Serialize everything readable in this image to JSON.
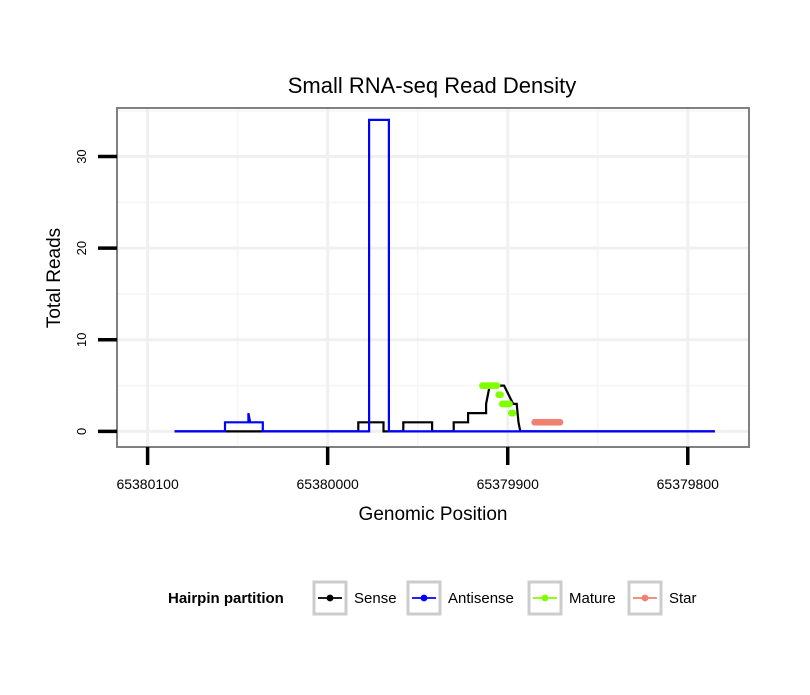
{
  "chart_data": {
    "type": "line",
    "title": "Small RNA-seq Read Density",
    "xlabel": "Genomic Position",
    "ylabel": "Total Reads",
    "xlim": [
      65380117,
      65379766
    ],
    "ylim": [
      -1.7,
      35.3
    ],
    "x_reversed": true,
    "x_ticks": [
      65380100,
      65380000,
      65379900,
      65379800
    ],
    "x_tick_labels": [
      "65380100",
      "65380000",
      "65379900",
      "65379800"
    ],
    "y_ticks": [
      0,
      10,
      20,
      30
    ],
    "y_tick_labels": [
      "0",
      "10",
      "20",
      "30"
    ],
    "grid": true,
    "legend": {
      "title": "Hairpin partition",
      "position": "bottom",
      "entries": [
        "Sense",
        "Antisense",
        "Mature",
        "Star"
      ]
    },
    "series": [
      {
        "name": "Sense",
        "color": "#000000",
        "style": "step",
        "points": [
          [
            65380085,
            0
          ],
          [
            65379983,
            0
          ],
          [
            65379983,
            1
          ],
          [
            65379969,
            1
          ],
          [
            65379969,
            0
          ],
          [
            65379958,
            0
          ],
          [
            65379958,
            1
          ],
          [
            65379942,
            1
          ],
          [
            65379942,
            0
          ],
          [
            65379930,
            0
          ],
          [
            65379930,
            1
          ],
          [
            65379922,
            1
          ],
          [
            65379922,
            2
          ],
          [
            65379912,
            2
          ],
          [
            65379912,
            3
          ],
          [
            65379910,
            5
          ],
          [
            65379902,
            5
          ],
          [
            65379897,
            3
          ],
          [
            65379895,
            3
          ],
          [
            65379894,
            1
          ],
          [
            65379893,
            0
          ],
          [
            65379785,
            0
          ]
        ]
      },
      {
        "name": "Antisense",
        "color": "#0000ff",
        "style": "step",
        "points": [
          [
            65380085,
            0
          ],
          [
            65380057,
            0
          ],
          [
            65380057,
            1
          ],
          [
            65380044,
            1
          ],
          [
            65380044,
            2
          ],
          [
            65380043,
            1
          ],
          [
            65380036,
            1
          ],
          [
            65380036,
            0
          ],
          [
            65379977,
            0
          ],
          [
            65379977,
            34
          ],
          [
            65379966,
            34
          ],
          [
            65379966,
            0
          ],
          [
            65379785,
            0
          ]
        ]
      },
      {
        "name": "Mature",
        "color": "#80ff00",
        "style": "points",
        "points": [
          [
            65379914,
            5
          ],
          [
            65379913,
            5
          ],
          [
            65379912,
            5
          ],
          [
            65379911,
            5
          ],
          [
            65379910,
            5
          ],
          [
            65379909,
            5
          ],
          [
            65379908,
            5
          ],
          [
            65379907,
            5
          ],
          [
            65379906,
            5
          ],
          [
            65379905,
            4
          ],
          [
            65379904,
            4
          ],
          [
            65379903,
            3
          ],
          [
            65379902,
            3
          ],
          [
            65379901,
            3
          ],
          [
            65379900,
            3
          ],
          [
            65379899,
            3
          ],
          [
            65379898,
            2
          ],
          [
            65379897,
            2
          ]
        ]
      },
      {
        "name": "Star",
        "color": "#f08070",
        "style": "points",
        "points": [
          [
            65379885,
            1
          ],
          [
            65379884,
            1
          ],
          [
            65379883,
            1
          ],
          [
            65379882,
            1
          ],
          [
            65379881,
            1
          ],
          [
            65379880,
            1
          ],
          [
            65379879,
            1
          ],
          [
            65379878,
            1
          ],
          [
            65379877,
            1
          ],
          [
            65379876,
            1
          ],
          [
            65379875,
            1
          ],
          [
            65379874,
            1
          ],
          [
            65379873,
            1
          ],
          [
            65379872,
            1
          ],
          [
            65379871,
            1
          ]
        ]
      }
    ]
  }
}
